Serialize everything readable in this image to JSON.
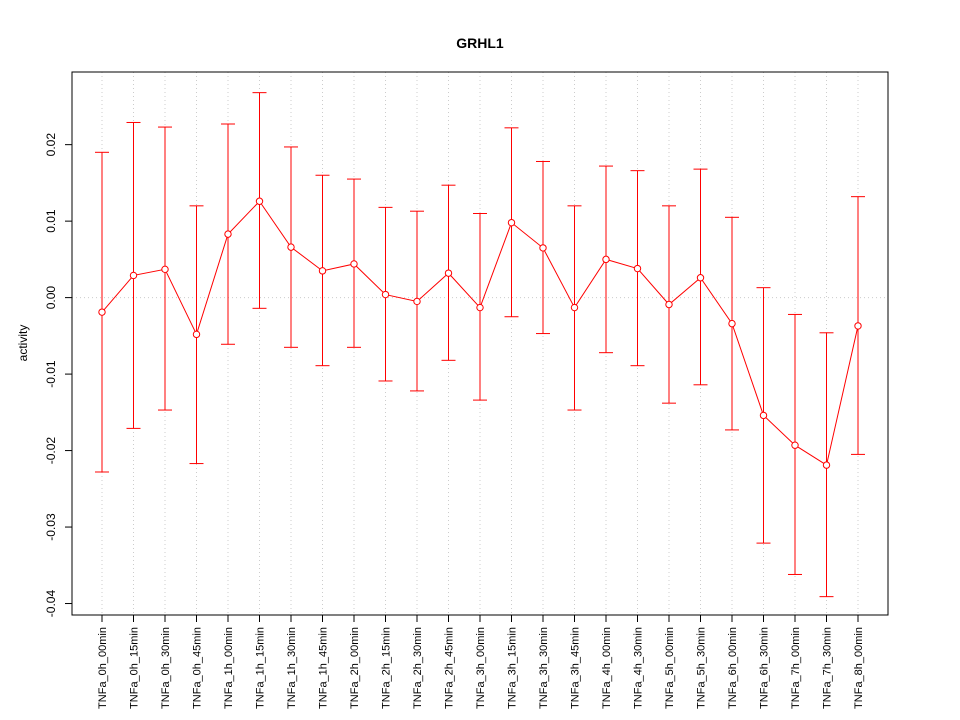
{
  "chart_data": {
    "type": "line",
    "title": "GRHL1",
    "xlabel": "",
    "ylabel": "activity",
    "ylim": [
      -0.0415,
      0.0295
    ],
    "y_ticks": [
      -0.04,
      -0.03,
      -0.02,
      -0.01,
      0.0,
      0.01,
      0.02
    ],
    "y_tick_labels": [
      "-0.04",
      "-0.03",
      "-0.02",
      "-0.01",
      "0.00",
      "0.01",
      "0.02"
    ],
    "grid": true,
    "color": "#ff0000",
    "categories": [
      "TNFa_0h_00min",
      "TNFa_0h_15min",
      "TNFa_0h_30min",
      "TNFa_0h_45min",
      "TNFa_1h_00min",
      "TNFa_1h_15min",
      "TNFa_1h_30min",
      "TNFa_1h_45min",
      "TNFa_2h_00min",
      "TNFa_2h_15min",
      "TNFa_2h_30min",
      "TNFa_2h_45min",
      "TNFa_3h_00min",
      "TNFa_3h_15min",
      "TNFa_3h_30min",
      "TNFa_3h_45min",
      "TNFa_4h_00min",
      "TNFa_4h_30min",
      "TNFa_5h_00min",
      "TNFa_5h_30min",
      "TNFa_6h_00min",
      "TNFa_6h_30min",
      "TNFa_7h_00min",
      "TNFa_7h_30min",
      "TNFa_8h_00min"
    ],
    "values": [
      -0.0019,
      0.0029,
      0.0037,
      -0.0048,
      0.0083,
      0.0126,
      0.0066,
      0.0035,
      0.0044,
      0.0004,
      -0.0005,
      0.0032,
      -0.0013,
      0.0098,
      0.0065,
      -0.0013,
      0.005,
      0.0038,
      -0.0009,
      0.0026,
      -0.0034,
      -0.0154,
      -0.0193,
      -0.0219,
      -0.0037
    ],
    "error_upper": [
      0.019,
      0.0229,
      0.0223,
      0.012,
      0.0227,
      0.0268,
      0.0197,
      0.016,
      0.0155,
      0.0118,
      0.0113,
      0.0147,
      0.011,
      0.0222,
      0.0178,
      0.012,
      0.0172,
      0.0166,
      0.012,
      0.0168,
      0.0105,
      0.0013,
      -0.0022,
      -0.0046,
      0.0132
    ],
    "error_lower": [
      -0.0228,
      -0.0171,
      -0.0147,
      -0.0217,
      -0.0061,
      -0.0014,
      -0.0065,
      -0.0089,
      -0.0065,
      -0.0109,
      -0.0122,
      -0.0082,
      -0.0134,
      -0.0025,
      -0.0047,
      -0.0147,
      -0.0072,
      -0.0089,
      -0.0138,
      -0.0114,
      -0.0173,
      -0.0321,
      -0.0362,
      -0.0391,
      -0.0205
    ]
  }
}
